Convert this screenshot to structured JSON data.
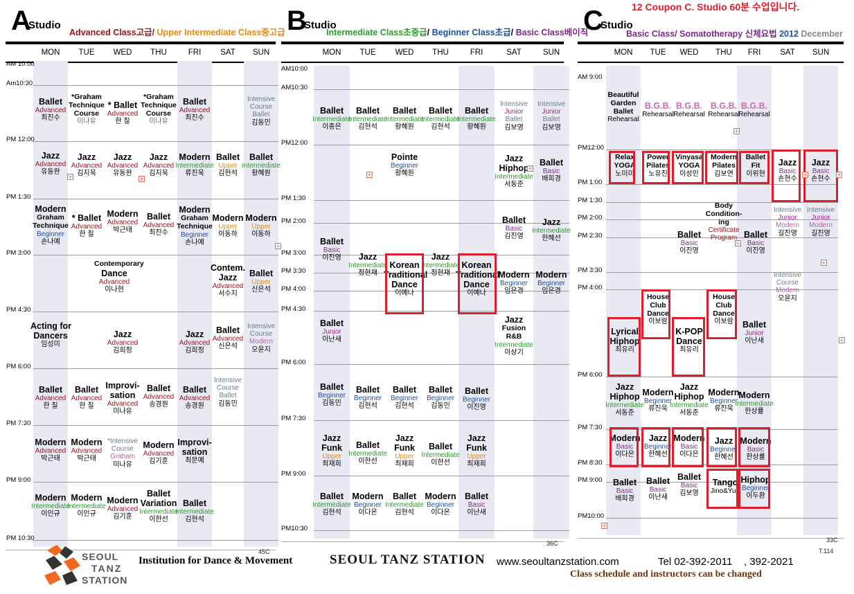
{
  "studio_a": {
    "letter": "A",
    "studio_word": "Studio",
    "subtitle": [
      {
        "text": "Advanced Class고급/ ",
        "color": "#9b1222"
      },
      {
        "text": "Upper Intermediate Class중고급",
        "color": "#e8890a"
      }
    ],
    "days": [
      "MON",
      "TUE",
      "WED",
      "THU",
      "FRI",
      "SAT",
      "SUN"
    ],
    "times": [
      "AM 10:00",
      "Am10:30",
      "PM 12:00",
      "PM 1:30",
      "PM 3:00",
      "PM 4:30",
      "PM 6:00",
      "PM 7:30",
      "PM 9:00",
      "PM 10:30"
    ],
    "page_no": "45C"
  },
  "studio_b": {
    "letter": "B",
    "studio_word": "Studio",
    "subtitle": [
      {
        "text": "Intermediate Class초중급",
        "color": "#2a9c2a"
      },
      {
        "text": "/ ",
        "color": "#000000"
      },
      {
        "text": "Beginner Class초급",
        "color": "#1c4fa0"
      },
      {
        "text": "/ ",
        "color": "#000000"
      },
      {
        "text": "Basic Class베이직",
        "color": "#7b2a87"
      }
    ],
    "days": [
      "MON",
      "TUE",
      "WED",
      "THU",
      "FRI",
      "SAT",
      "SUN"
    ],
    "times": [
      "AM10:00",
      "AM10:30",
      "PM12:00",
      "PM 1:30",
      "PM 2:00",
      "PM 3:00",
      "PM 3:30",
      "PM 4:00",
      "PM 4:30",
      "PM 6:00",
      "PM 7:30",
      "PM 9:00",
      "PM10:30"
    ],
    "page_no": "36C"
  },
  "studio_c": {
    "letter": "C",
    "studio_word": "Studio",
    "coupon_note": "12 Coupon C. Studio 60분 수업입니다.",
    "subtitle": [
      {
        "text": "Basic Class/ Somatotherapy ",
        "color": "#7b2a87"
      },
      {
        "text": "신체요법 ",
        "color": "#7b2a87"
      },
      {
        "text": "2012 ",
        "color": "#1c4fa0"
      },
      {
        "text": "December",
        "color": "#888888"
      }
    ],
    "days": [
      "MON",
      "TUE",
      "WED",
      "THU",
      "FRI",
      "SAT",
      "SUN"
    ],
    "times": [
      "AM  9:00",
      "PM12:00",
      "PM 1:00",
      "PM  1:30",
      "PM  2:00",
      "PM  2:30",
      "PM  3:30",
      "PM  4:00",
      "PM  6:00",
      "PM  7:30",
      "PM  8:30",
      "PM  9:00",
      "PM10:00"
    ],
    "page_no": "33C",
    "page_code": "T.114"
  },
  "footer": {
    "logo_line1": "SEOUL",
    "logo_line2": "TANZ",
    "logo_line3": "STATION",
    "institution": "Institution for Dance & Movement",
    "brand": "SEOUL TANZ STATION",
    "website": "www.seoultanzstation.com",
    "phone": "Tel 02-392-2011    , 392-2021",
    "note": "Class schedule and instructors can be changed"
  },
  "colors": {
    "advanced": "#9b1222",
    "upper": "#e8890a",
    "intermediate": "#2a9c2a",
    "beginner": "#1c4fa0",
    "basic": "#7b2a87",
    "highlight_box": "#dd1e2d",
    "column_shade": "#e9e9f3",
    "footer_note": "#6b3410"
  },
  "classes_a": [
    {
      "c": "blk",
      "l": [
        "Ballet:n:blk",
        "Advanced:l:adv",
        "최진수:l:blk"
      ]
    },
    {
      "c": "blk",
      "l": [
        "*Graham:t:blk",
        "Technique:t:blk",
        "Course:t:blk",
        " :l:blk",
        "미나유:l:grey"
      ]
    },
    {
      "c": "blk",
      "l": [
        "* Ballet:n:blk",
        "Advanced:l:adv",
        "한 칠:l:blk"
      ]
    },
    {
      "c": "blk",
      "l": [
        "*Graham:t:blk",
        "Technique:t:blk",
        "Course:t:blk",
        " :l:blk",
        "미나유:l:grey"
      ]
    },
    {
      "c": "blk",
      "l": [
        "Ballet:n:blk",
        "Advanced:l:adv",
        "최진수:l:blk"
      ]
    },
    {
      "c": "blk",
      "l": [
        "Intensive:l:intc",
        "Course:l:intc",
        "Ballet:l:intc",
        "김동민:l:blk"
      ]
    },
    {
      "c": "blk",
      "l": [
        "Jazz:n:blk",
        "Advanced:l:adv",
        "유동완:l:blk"
      ]
    },
    {
      "c": "blk",
      "l": [
        "Jazz:n:blk",
        "Advanced:l:adv",
        "김지욱:l:blk"
      ]
    },
    {
      "c": "blk",
      "l": [
        "Jazz:n:blk",
        "Advanced:l:adv",
        "유동완:l:blk"
      ]
    },
    {
      "c": "blk",
      "l": [
        "Jazz:n:blk",
        "Advanced:l:adv",
        "김지욱:l:blk"
      ]
    },
    {
      "c": "blk",
      "l": [
        "Modern:n:blk",
        "Intermediate:l:int",
        "류진욱:l:blk"
      ]
    },
    {
      "c": "blk",
      "l": [
        "Ballet:n:blk",
        "Upper:l:upp",
        "김현석:l:blk"
      ]
    },
    {
      "c": "blk",
      "l": [
        "Ballet:n:blk",
        "Intermediate:l:int",
        "황혜원:l:blk"
      ]
    },
    {
      "c": "blk",
      "l": [
        "Modern:n:blk",
        "Graham:t:blk",
        "Technique:t:blk",
        "Beginner:l:beg",
        "손나예:l:blk"
      ]
    },
    {
      "c": "blk",
      "l": [
        "* Ballet:n:blk",
        "Advanced:l:adv",
        "한 칠:l:blk"
      ]
    },
    {
      "c": "blk",
      "l": [
        "Modern:n:blk",
        "Advanced:l:adv",
        "박근태:l:blk"
      ]
    },
    {
      "c": "blk",
      "l": [
        "Ballet:n:blk",
        "Advanced:l:adv",
        "최진수:l:blk"
      ]
    },
    {
      "c": "blk",
      "l": [
        "Modern:n:blk",
        "Graham:t:blk",
        "Technique:t:blk",
        "Beginner:l:beg",
        "손나예:l:blk"
      ]
    },
    {
      "c": "blk",
      "l": [
        "Modern:n:blk",
        "Upper:l:upp",
        "이동하:l:blk"
      ]
    },
    {
      "c": "blk",
      "l": [
        "Modern:n:blk",
        "Upper:l:upp",
        "이동하:l:blk"
      ]
    },
    {
      "c": "blk",
      "l": [
        "Contemporary:t:blk",
        " :l:blk",
        "Dance:n:blk",
        "Advanced:l:adv",
        "이나현:l:blk"
      ]
    },
    {
      "c": "blk",
      "l": [
        "Contem.:n:blk",
        "Jazz:n:blk",
        "Advanced:l:adv",
        "서수지:l:blk"
      ]
    },
    {
      "c": "blk",
      "l": [
        "Ballet:n:blk",
        "Upper:l:upp",
        "신은석:l:blk"
      ]
    },
    {
      "c": "blk",
      "l": [
        "Acting for:n:blk",
        "Dancers:n:blk",
        " :l:blk",
        "임성미:l:blk"
      ]
    },
    {
      "c": "blk",
      "l": [
        "Jazz:n:blk",
        "Advanced:l:adv",
        "김희정:l:blk"
      ]
    },
    {
      "c": "blk",
      "l": [
        "Jazz:n:blk",
        "Advanced:l:adv",
        "김희정:l:blk"
      ]
    },
    {
      "c": "blk",
      "l": [
        "Ballet:n:blk",
        "Advanced:l:adv",
        "신은석:l:blk"
      ]
    },
    {
      "c": "blk",
      "l": [
        "Intensive:l:intc",
        "Course:l:intc",
        "Modern:l:mod",
        "오윤지:l:blk"
      ]
    },
    {
      "c": "blk",
      "l": [
        "Ballet:n:blk",
        "Advanced:l:adv",
        "한 칠:l:blk"
      ]
    },
    {
      "c": "blk",
      "l": [
        "Ballet:n:blk",
        "Advanced:l:adv",
        "한 칠:l:blk"
      ]
    },
    {
      "c": "blk",
      "l": [
        "Improvi-:n:blk",
        "sation:n:blk",
        "Advanced:l:adv",
        "미나유:l:blk"
      ]
    },
    {
      "c": "blk",
      "l": [
        "Ballet:n:blk",
        "Advanced:l:adv",
        "송경원:l:blk"
      ]
    },
    {
      "c": "blk",
      "l": [
        "Ballet:n:blk",
        "Advanced:l:adv",
        "송경원:l:blk"
      ]
    },
    {
      "c": "blk",
      "l": [
        "Intensive:l:intc",
        "Course:l:intc",
        "Ballet:l:intc",
        "김동민:l:blk"
      ]
    },
    {
      "c": "blk",
      "l": [
        "Modern:n:blk",
        "Advanced:l:adv",
        "박근태:l:blk"
      ]
    },
    {
      "c": "blk",
      "l": [
        "Modern:n:blk",
        "Advanced:l:adv",
        "박근태:l:blk"
      ]
    },
    {
      "c": "blk",
      "l": [
        "*Intensive:l:intc",
        "Course:l:intc",
        "Graham:l:mod",
        "미나유:l:blk"
      ]
    },
    {
      "c": "blk",
      "l": [
        "Modern:n:blk",
        "Advanced:l:adv",
        "김기훈:l:blk"
      ]
    },
    {
      "c": "blk",
      "l": [
        "Improvi-:n:blk",
        "sation:n:blk",
        " :l:blk",
        "최문예:l:blk"
      ]
    },
    {
      "c": "blk",
      "l": [
        "Modern:n:blk",
        "Intermediate:l:int",
        "이인규:l:blk"
      ]
    },
    {
      "c": "blk",
      "l": [
        "Modern:n:blk",
        "Intermediate:l:int",
        "이인규:l:blk"
      ]
    },
    {
      "c": "blk",
      "l": [
        "Modern:n:blk",
        "Advanced:l:adv",
        "김기훈:l:blk"
      ]
    },
    {
      "c": "blk",
      "l": [
        "Ballet:n:blk",
        "Variation:n:blk",
        "Intermediate:l:int",
        "이한선:l:blk"
      ]
    },
    {
      "c": "blk",
      "l": [
        "Ballet:n:blk",
        "Intermediate:l:int",
        "김현석:l:blk"
      ]
    }
  ],
  "classes_b": [
    {
      "l": [
        "Ballet:n:blk",
        "Intermediate:l:int",
        "이종은:l:blk"
      ]
    },
    {
      "l": [
        "Ballet:n:blk",
        "Intermediate:l:int",
        "김현석:l:blk"
      ]
    },
    {
      "l": [
        "Ballet:n:blk",
        "Intermediate:l:int",
        "황혜원:l:blk"
      ]
    },
    {
      "l": [
        "Ballet:n:blk",
        "Intermediate:l:int",
        "김현석:l:blk"
      ]
    },
    {
      "l": [
        "Ballet:n:blk",
        "Intermediate:l:int",
        "황혜원:l:blk"
      ]
    },
    {
      "l": [
        "Intensive:l:intc",
        "Junior:l:jun",
        "Ballet:l:intc",
        "김보영:l:blk"
      ]
    },
    {
      "l": [
        "Intensive:l:intc",
        "Junior:l:jun",
        "Ballet:l:intc",
        "김보영:l:blk"
      ]
    },
    {
      "l": [
        "Pointe:n:blk",
        "Beginner:l:beg",
        "황혜원:l:blk"
      ]
    },
    {
      "l": [
        "Jazz:n:blk",
        "Hiphop:n:blk",
        " :l:blk",
        "Intermediate:l:int",
        " :l:blk",
        "서동준:l:blk"
      ]
    },
    {
      "l": [
        "Ballet:n:blk",
        "Basic:l:bas",
        "배희경:l:blk"
      ]
    },
    {
      "l": [
        "Ballet:n:blk",
        "Basic:l:bas",
        "김진영:l:blk"
      ]
    },
    {
      "l": [
        "Jazz:n:blk",
        "Intermediate:l:int",
        "한혜선:l:blk"
      ]
    },
    {
      "l": [
        "Ballet:n:blk",
        "Basic:l:bas",
        "이진영:l:blk"
      ]
    },
    {
      "l": [
        "Jazz:n:blk",
        "Intermediate:l:int",
        "정현재:l:blk"
      ]
    },
    {
      "l": [
        "Korean:n:blk",
        "Traditional:n:blk",
        "Dance:n:blk",
        " :l:blk",
        "이예나:l:blk"
      ]
    },
    {
      "l": [
        "Jazz:n:blk",
        "Intermediate:l:int",
        "정현재:l:blk"
      ]
    },
    {
      "l": [
        "Korean:n:blk",
        "Traditional:n:blk",
        "Dance:n:blk",
        " :l:blk",
        "이예나:l:blk"
      ]
    },
    {
      "l": [
        "Modern:n:blk",
        "Beginner:l:beg",
        "임은경:l:blk"
      ]
    },
    {
      "l": [
        "Modern:n:blk",
        "Beginner:l:beg",
        "임은경:l:blk"
      ]
    },
    {
      "l": [
        "Ballet:n:blk",
        "Junior:l:jun",
        "이난새:l:blk"
      ]
    },
    {
      "l": [
        "Jazz:n:blk",
        "Fusion:t:blk",
        "R&B:t:blk",
        "Intermediate:l:int",
        "이상기:l:blk"
      ]
    },
    {
      "l": [
        "Ballet:n:blk",
        "Beginner:l:beg",
        "김동민:l:blk"
      ]
    },
    {
      "l": [
        "Ballet:n:blk",
        "Beginner:l:beg",
        "김현석:l:blk"
      ]
    },
    {
      "l": [
        "Ballet:n:blk",
        "Beginner:l:beg",
        "김현석:l:blk"
      ]
    },
    {
      "l": [
        "Ballet:n:blk",
        "Beginner:l:beg",
        "김동민:l:blk"
      ]
    },
    {
      "l": [
        "Ballet:n:blk",
        "Beginner:l:beg",
        "이진영:l:blk"
      ]
    },
    {
      "l": [
        "Jazz:n:blk",
        "Funk:n:blk",
        "Upper:l:upp",
        "최재희:l:blk"
      ]
    },
    {
      "l": [
        "Ballet:n:blk",
        "Intermediate:l:int",
        "이한선:l:blk"
      ]
    },
    {
      "l": [
        "Jazz:n:blk",
        "Funk:n:blk",
        "Upper:l:upp",
        "최재희:l:blk"
      ]
    },
    {
      "l": [
        "Ballet:n:blk",
        "Intermediate:l:int",
        "이한선:l:blk"
      ]
    },
    {
      "l": [
        "Jazz:n:blk",
        "Funk:n:blk",
        "Upper:l:upp",
        "최재희:l:blk"
      ]
    },
    {
      "l": [
        "Ballet:n:blk",
        "Intermediate:l:int",
        "김현석:l:blk"
      ]
    },
    {
      "l": [
        "Modern:n:blk",
        "Beginner:l:beg",
        "이다온:l:blk"
      ]
    },
    {
      "l": [
        "Ballet:n:blk",
        "Intermediate:l:int",
        "김현석:l:blk"
      ]
    },
    {
      "l": [
        "Modern:n:blk",
        "Beginner:l:beg",
        "이다온:l:blk"
      ]
    },
    {
      "l": [
        "Ballet:n:blk",
        "Basic:l:bas",
        "이난새:l:blk"
      ]
    }
  ],
  "classes_c": [
    {
      "l": [
        "Beautiful:t:blk",
        "Garden:t:blk",
        "Ballet:t:blk",
        " :l:blk",
        "Rehearsal:l:blk"
      ]
    },
    {
      "l": [
        "B.G.B.:n:pink",
        " :l:blk",
        " :l:blk",
        "Rehearsal:l:blk"
      ]
    },
    {
      "l": [
        "B.G.B.:n:pink",
        " :l:blk",
        " :l:blk",
        "Rehearsal:l:blk"
      ]
    },
    {
      "l": [
        "B.G.B.:n:pink",
        " :l:blk",
        " :l:blk",
        "Rehearsal:l:blk"
      ]
    },
    {
      "l": [
        "B.G.B.:n:pink",
        " :l:blk",
        " :l:blk",
        "Rehearsal:l:blk"
      ]
    },
    {
      "l": [
        "Relax:t:blk",
        "YOGA:t:blk",
        "노미미:l:blk"
      ]
    },
    {
      "l": [
        "Power:t:blk",
        "Pilates:t:blk",
        "노유진:l:blk"
      ]
    },
    {
      "l": [
        "Vinyasa:t:blk",
        "YOGA:t:blk",
        "이성인:l:blk"
      ]
    },
    {
      "l": [
        "Modern:t:blk",
        "Pilates:t:blk",
        "김보연:l:blk"
      ]
    },
    {
      "l": [
        "Ballet:t:blk",
        "Fit:t:blk",
        "이위현:l:blk"
      ]
    },
    {
      "l": [
        "Jazz:n:blk",
        "Basic:l:bas",
        "손현수:l:blk"
      ]
    },
    {
      "l": [
        "Jazz:n:blk",
        "Basic:l:bas",
        "손현수:l:blk"
      ]
    },
    {
      "l": [
        "Body:t:blk",
        "Condition-:t:blk",
        "ing:t:blk",
        "Certificate:l:adv",
        "Program:l:adv"
      ]
    },
    {
      "l": [
        "Intensive:l:intc",
        "Junior:l:jun",
        "Modern:l:mod",
        "길진영:l:blk"
      ]
    },
    {
      "l": [
        "Intensive:l:intc",
        "Junior:l:jun",
        "Modern:l:mod",
        "길진영:l:blk"
      ]
    },
    {
      "l": [
        "Ballet:n:blk",
        "Basic:l:bas",
        "이진영:l:blk"
      ]
    },
    {
      "l": [
        "Ballet:n:blk",
        "Basic:l:bas",
        "이진영:l:blk"
      ]
    },
    {
      "l": [
        "Intensive:l:intc",
        "Course:l:intc",
        "Modern:l:mod",
        "오윤지:l:blk"
      ]
    },
    {
      "l": [
        "House:t:blk",
        "Club:t:blk",
        "Dance:t:blk",
        "이보람:l:blk"
      ]
    },
    {
      "l": [
        "House:t:blk",
        "Club:t:blk",
        "Dance:t:blk",
        "이보람:l:blk"
      ]
    },
    {
      "l": [
        "Ballet:n:blk",
        "Junior:l:jun",
        " :l:blk",
        "이난새:l:blk"
      ]
    },
    {
      "l": [
        "Lyrical:n:blk",
        "Hiphop:n:blk",
        " :l:blk",
        "최유리:l:blk"
      ]
    },
    {
      "l": [
        "K-POP:n:blk",
        "Dance:n:blk",
        " :l:blk",
        "최유리:l:blk"
      ]
    },
    {
      "l": [
        "Jazz:n:blk",
        "Hiphop:n:blk",
        "Intermediate:l:int",
        "서동준:l:blk"
      ]
    },
    {
      "l": [
        "Modern:n:blk",
        "Beginner:l:beg",
        "류진욱:l:blk"
      ]
    },
    {
      "l": [
        "Jazz:n:blk",
        "Hiphop:n:blk",
        "Intermediate:l:int",
        "서동준:l:blk"
      ]
    },
    {
      "l": [
        "Modern:n:blk",
        "Beginner:l:beg",
        "류진욱:l:blk"
      ]
    },
    {
      "l": [
        "Modern:n:blk",
        "Intermediate:l:int",
        "한상률:l:blk"
      ]
    },
    {
      "l": [
        "Modern:n:blk",
        "Basic:l:bas",
        "이다은:l:blk"
      ]
    },
    {
      "l": [
        "Jazz:n:blk",
        "Beginner:l:beg",
        "한혜선:l:blk"
      ]
    },
    {
      "l": [
        "Modern:n:blk",
        "Basic:l:bas",
        "이다은:l:blk"
      ]
    },
    {
      "l": [
        "Jazz:n:blk",
        "Beginner:l:beg",
        "한혜선:l:blk"
      ]
    },
    {
      "l": [
        "Modern:n:blk",
        "Basic:l:bas",
        "한상률:l:blk"
      ]
    },
    {
      "l": [
        "Ballet:n:blk",
        "Basic:l:bas",
        "배희경:l:blk"
      ]
    },
    {
      "l": [
        "Ballet:n:blk",
        "Basic:l:bas",
        "이난새:l:blk"
      ]
    },
    {
      "l": [
        "Ballet:n:blk",
        "Basic:l:bas",
        "김보영:l:blk"
      ]
    },
    {
      "l": [
        "Tango:n:blk",
        "Jino&Yun:l:blk"
      ]
    },
    {
      "l": [
        "Hiphop:n:blk",
        "Beginner:l:beg",
        "이두환:l:blk"
      ]
    }
  ]
}
